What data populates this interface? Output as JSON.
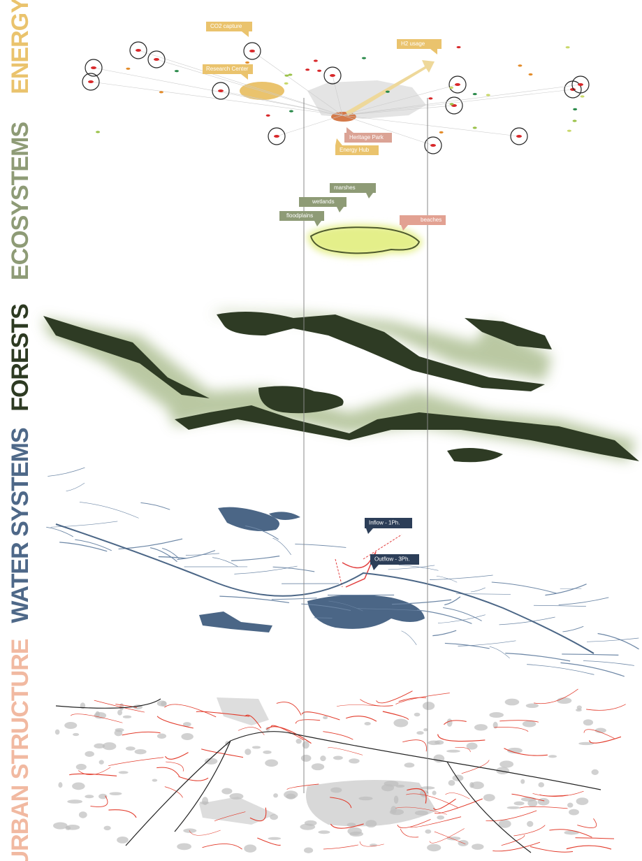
{
  "layers": {
    "energy": "ENERGY",
    "ecosystems": "ECOSYSTEMS",
    "forests": "FORESTS",
    "water": "WATER SYSTEMS",
    "urban": "URBAN STRUCTURE"
  },
  "energy_labels": {
    "co2": "CO2 capture",
    "h2": "H2 usage",
    "research": "Research Center",
    "heritage": "Heritage Park",
    "hub": "Energy Hub"
  },
  "ecosystem_labels": {
    "marshes": "marshes",
    "wetlands": "wetlands",
    "floodplains": "floodplains",
    "beaches": "beaches"
  },
  "water_labels": {
    "inflow": "Inflow - 1Ph.",
    "outflow": "Outflow - 3Ph."
  }
}
